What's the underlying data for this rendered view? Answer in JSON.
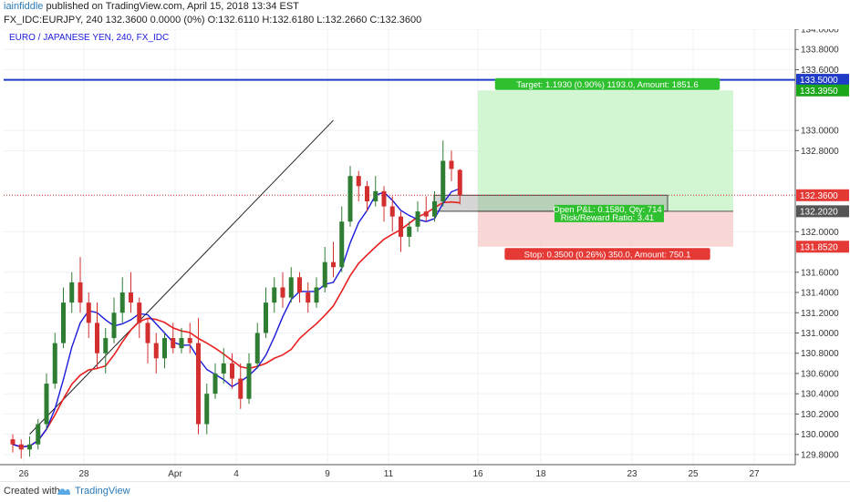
{
  "header": {
    "author": "iainfiddle",
    "line1_rest": " published on TradingView.com, April 15, 2018 13:34 EST",
    "line2": "FX_IDC:EURJPY, 240  132.3600 0.0000 (0%) O:132.6110 H:132.6180 L:132.2660 C:132.3600"
  },
  "footer": {
    "created_with": "Created with",
    "brand": "TradingView"
  },
  "colors": {
    "up": "#2e7d32",
    "down": "#d32f2f",
    "ma_fast": "#1a1adb",
    "ma_slow": "#e82020",
    "resistance": "#1e3cc8",
    "target_fill": "#c9f5c9",
    "stop_fill": "#f9d0d0"
  },
  "chart_data": {
    "type": "candlestick",
    "title": "EURO / JAPANESE YEN, 240, FX_IDC",
    "y_ticks": [
      "129.8000",
      "130.0000",
      "130.2000",
      "130.4000",
      "130.6000",
      "130.8000",
      "131.0000",
      "131.2000",
      "131.4000",
      "131.6000",
      "132.0000",
      "132.8000",
      "133.0000",
      "133.6000",
      "133.8000",
      "134.0000"
    ],
    "ylim": [
      129.7,
      134.0
    ],
    "x_ticks": [
      "26",
      "28",
      "Apr",
      "4",
      "9",
      "11",
      "16",
      "18",
      "23",
      "25",
      "27"
    ],
    "price_labels": [
      {
        "value": 133.5,
        "text": "133.5000",
        "color": "#1e3cc8"
      },
      {
        "value": 133.395,
        "text": "133.3950",
        "color": "#1aa81a"
      },
      {
        "value": 132.36,
        "text": "132.3600",
        "color": "#e53935"
      },
      {
        "value": 132.202,
        "text": "132.2020",
        "color": "#555555"
      },
      {
        "value": 131.852,
        "text": "131.8520",
        "color": "#e53935"
      }
    ],
    "resistance_level": 133.5,
    "current_price": 132.36,
    "position": {
      "side": "long",
      "entry": 132.202,
      "target": 133.395,
      "stop": 131.852,
      "target_label": "Target: 1.1930 (0.90%) 1193.0, Amount: 1851.6",
      "stop_label": "Stop: 0.3500 (0.26%) 350.0, Amount: 750.1",
      "pnl_label": "Open P&L: 0.1580, Qty: 714",
      "rr_label": "Risk/Reward Ratio: 3.41"
    },
    "trendline": {
      "start": [
        2,
        130.0
      ],
      "end": [
        27,
        131.5
      ],
      "projection_end": [
        38,
        133.1
      ]
    },
    "candles": [
      [
        129.95,
        129.9,
        130.0,
        129.82
      ],
      [
        129.9,
        129.85,
        129.95,
        129.76
      ],
      [
        129.85,
        129.9,
        129.98,
        129.78
      ],
      [
        129.9,
        130.1,
        130.15,
        129.85
      ],
      [
        130.1,
        130.5,
        130.6,
        130.05
      ],
      [
        130.5,
        130.9,
        131.0,
        130.45
      ],
      [
        130.9,
        131.3,
        131.45,
        130.85
      ],
      [
        131.3,
        131.5,
        131.6,
        131.2
      ],
      [
        131.5,
        131.3,
        131.75,
        131.2
      ],
      [
        131.3,
        131.1,
        131.4,
        130.95
      ],
      [
        131.1,
        130.8,
        131.3,
        130.65
      ],
      [
        130.8,
        130.95,
        131.05,
        130.6
      ],
      [
        130.95,
        131.2,
        131.35,
        130.9
      ],
      [
        131.2,
        131.4,
        131.55,
        131.1
      ],
      [
        131.4,
        131.3,
        131.6,
        131.2
      ],
      [
        131.3,
        131.1,
        131.35,
        130.95
      ],
      [
        131.1,
        130.9,
        131.15,
        130.7
      ],
      [
        130.9,
        130.75,
        131.0,
        130.6
      ],
      [
        130.75,
        130.95,
        131.0,
        130.65
      ],
      [
        130.95,
        130.85,
        131.1,
        130.8
      ],
      [
        130.85,
        130.95,
        131.05,
        130.8
      ],
      [
        130.95,
        130.9,
        131.1,
        130.8
      ],
      [
        130.9,
        130.1,
        131.15,
        130.0
      ],
      [
        130.1,
        130.4,
        130.5,
        130.0
      ],
      [
        130.4,
        130.6,
        130.7,
        130.35
      ],
      [
        130.6,
        130.7,
        130.85,
        130.5
      ],
      [
        130.7,
        130.55,
        130.8,
        130.45
      ],
      [
        130.55,
        130.35,
        130.7,
        130.25
      ],
      [
        130.35,
        130.7,
        130.8,
        130.3
      ],
      [
        130.7,
        131.0,
        131.1,
        130.65
      ],
      [
        131.0,
        131.3,
        131.45,
        130.95
      ],
      [
        131.3,
        131.45,
        131.55,
        131.2
      ],
      [
        131.45,
        131.35,
        131.6,
        131.25
      ],
      [
        131.35,
        131.55,
        131.65,
        131.3
      ],
      [
        131.55,
        131.4,
        131.6,
        131.3
      ],
      [
        131.4,
        131.3,
        131.5,
        131.2
      ],
      [
        131.3,
        131.45,
        131.55,
        131.25
      ],
      [
        131.45,
        131.7,
        131.85,
        131.4
      ],
      [
        131.7,
        131.65,
        131.9,
        131.55
      ],
      [
        131.65,
        132.1,
        132.25,
        131.6
      ],
      [
        132.1,
        132.55,
        132.65,
        132.05
      ],
      [
        132.55,
        132.45,
        132.6,
        132.3
      ],
      [
        132.45,
        132.3,
        132.5,
        132.2
      ],
      [
        132.3,
        132.4,
        132.55,
        132.25
      ],
      [
        132.4,
        132.25,
        132.45,
        132.1
      ],
      [
        132.25,
        132.15,
        132.35,
        132.0
      ],
      [
        132.15,
        131.95,
        132.2,
        131.8
      ],
      [
        131.95,
        132.05,
        132.1,
        131.85
      ],
      [
        132.05,
        132.2,
        132.3,
        132.0
      ],
      [
        132.2,
        132.15,
        132.35,
        132.1
      ],
      [
        132.15,
        132.3,
        132.4,
        132.1
      ],
      [
        132.3,
        132.7,
        132.9,
        132.25
      ],
      [
        132.7,
        132.62,
        132.8,
        132.5
      ],
      [
        132.61,
        132.36,
        132.62,
        132.27
      ]
    ]
  }
}
